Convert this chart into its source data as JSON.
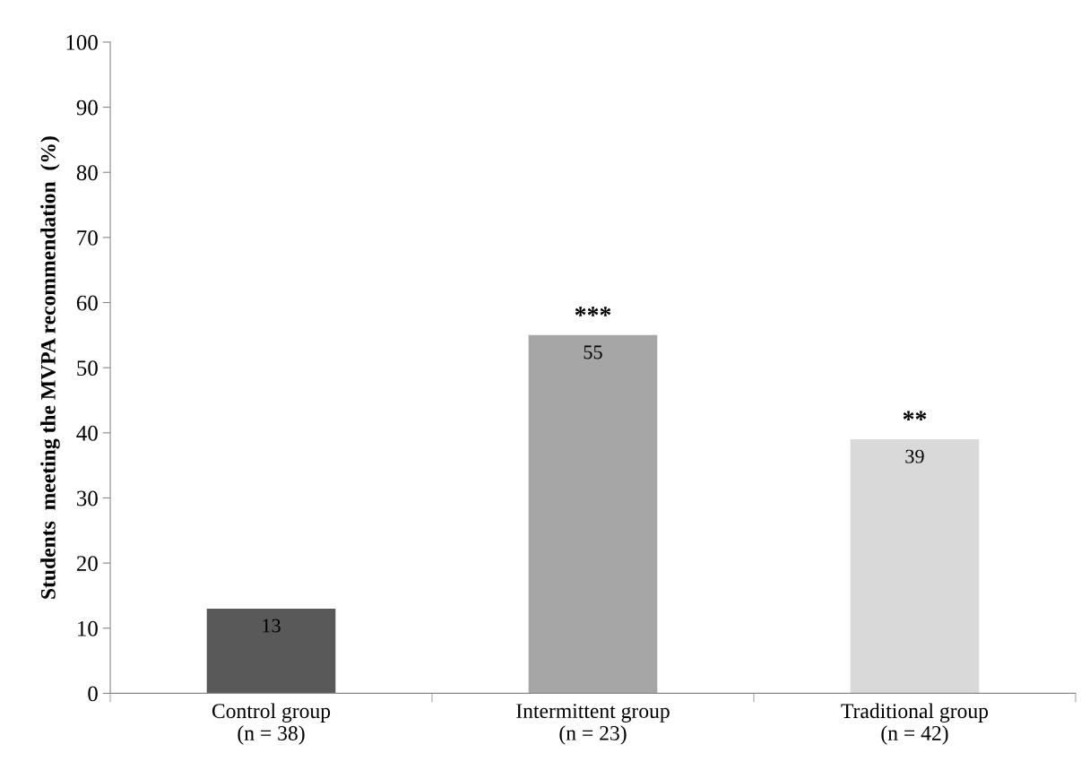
{
  "chart_data": {
    "type": "bar",
    "ylabel": "Students  meeting the MVPA recommendation  (%)",
    "categories": [
      "Control group\n(n = 38)",
      "Intermittent group\n(n = 23)",
      "Traditional group\n(n = 42)"
    ],
    "values": [
      13,
      55,
      39
    ],
    "colors": [
      "#595959",
      "#a6a6a6",
      "#d9d9d9"
    ],
    "data_labels": true,
    "ylim": [
      0,
      100
    ],
    "yticks": [
      0,
      10,
      20,
      30,
      40,
      50,
      60,
      70,
      80,
      90,
      100
    ],
    "grid": false,
    "legend": false,
    "annotations": [
      {
        "text": "***",
        "x": "Intermittent group\n(n = 23)",
        "y": 55
      },
      {
        "text": "**",
        "x": "Traditional group\n(n = 42)",
        "y": 39
      }
    ]
  }
}
